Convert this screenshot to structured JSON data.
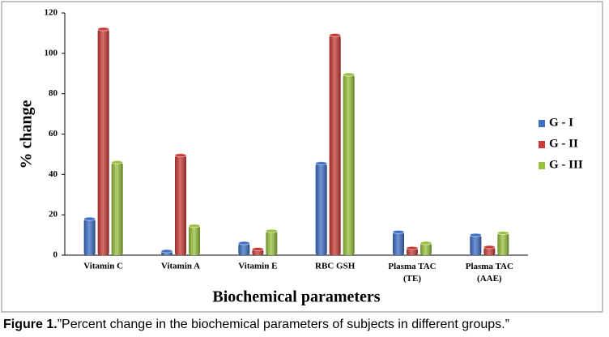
{
  "chart_data": {
    "type": "bar",
    "x_label": "Biochemical parameters",
    "y_label": "% change",
    "categories": [
      "Vitamin C",
      "Vitamin A",
      "Vitamin E",
      "RBC GSH",
      "Plasma TAC (TE)",
      "Plasma TAC (AAE)"
    ],
    "series": [
      {
        "name": "G - I",
        "color": "#3d6fc6",
        "values": [
          18,
          2,
          6,
          45.5,
          11.5,
          10
        ]
      },
      {
        "name": "G - II",
        "color": "#c93a35",
        "values": [
          112,
          49.5,
          3,
          109,
          3.5,
          4
        ]
      },
      {
        "name": "G - III",
        "color": "#98c23d",
        "values": [
          46,
          14.5,
          12,
          89.5,
          6,
          11
        ]
      }
    ],
    "ylim": [
      0,
      120
    ],
    "yticks": [
      0,
      20,
      40,
      60,
      80,
      100,
      120
    ],
    "legend": "right"
  },
  "figure": {
    "label": "Figure 1.",
    "caption": "”Percent change in the biochemical parameters of subjects in different groups.”"
  }
}
